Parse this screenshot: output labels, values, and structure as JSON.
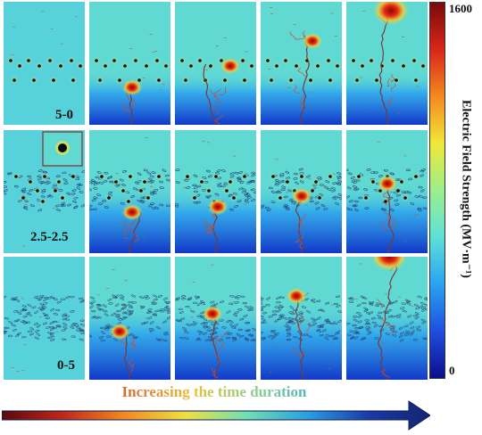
{
  "rows": [
    {
      "label": "5-0"
    },
    {
      "label": "2.5-2.5"
    },
    {
      "label": "0-5"
    }
  ],
  "colorbar": {
    "title": "Electric Field Strength (MV·m⁻¹)",
    "max_label": "1600",
    "min_label": "0",
    "colors": [
      "#0a0f8a",
      "#1f4fe0",
      "#2aa3f0",
      "#5ee0d8",
      "#9af08a",
      "#f0e83a",
      "#f5891f",
      "#d8261a",
      "#7a0a0a"
    ]
  },
  "time_caption": "Increasing the time duration",
  "arrow_colors": [
    "#5a0a0a",
    "#c0281a",
    "#f08a20",
    "#f0e040",
    "#6fe0b0",
    "#2a9fe0",
    "#1a3aa8",
    "#14246e"
  ]
}
